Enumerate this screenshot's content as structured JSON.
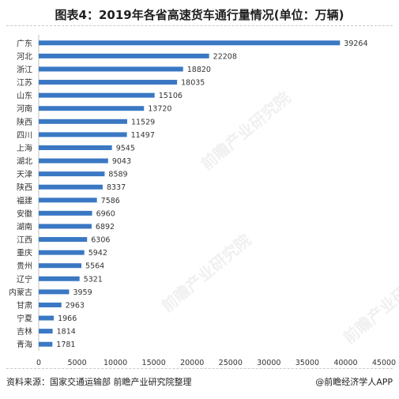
{
  "title": "图表4：2019年各省高速货车通行量情况(单位：万辆)",
  "source": "资料来源：国家交通运输部 前瞻产业研究院整理",
  "brand": "@前瞻经济学人APP",
  "watermark": "前瞻产业研究院",
  "colors": {
    "bar": "#3a78c3",
    "axis": "#bfbfbf",
    "text": "#333333"
  },
  "chart_data": {
    "type": "bar",
    "orientation": "horizontal",
    "title": "图表4：2019年各省高速货车通行量情况(单位：万辆)",
    "categories": [
      "广东",
      "河北",
      "浙江",
      "江苏",
      "山东",
      "河南",
      "陕西",
      "四川",
      "上海",
      "湖北",
      "天津",
      "陕西",
      "福建",
      "安徽",
      "湖南",
      "江西",
      "重庆",
      "贵州",
      "辽宁",
      "内蒙古",
      "甘肃",
      "宁夏",
      "吉林",
      "青海"
    ],
    "values": [
      39264,
      22208,
      18820,
      18035,
      15106,
      13720,
      11529,
      11497,
      9545,
      9043,
      8589,
      8337,
      7586,
      6960,
      6892,
      6306,
      5942,
      5564,
      5321,
      3959,
      2963,
      1966,
      1814,
      1781
    ],
    "xlim": [
      0,
      45000
    ],
    "xticks": [
      0,
      5000,
      10000,
      15000,
      20000,
      25000,
      30000,
      35000,
      40000,
      45000
    ],
    "grid": false,
    "data_labels": true
  }
}
